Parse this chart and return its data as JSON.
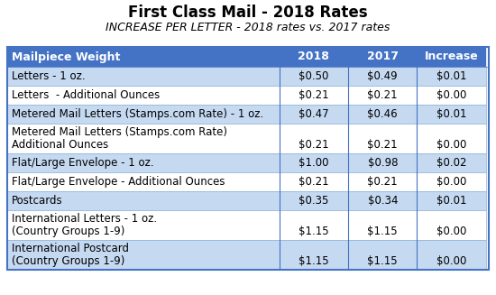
{
  "title": "First Class Mail - 2018 Rates",
  "subtitle": "INCREASE PER LETTER - 2018 rates vs. 2017 rates",
  "headers": [
    "Mailpiece Weight",
    "2018",
    "2017",
    "Increase"
  ],
  "rows": [
    {
      "label": "Letters - 1 oz.",
      "label2": null,
      "rate2018": "$0.50",
      "rate2017": "$0.49",
      "increase": "$0.01",
      "multiline": false,
      "shade": "light"
    },
    {
      "label": "Letters  - Additional Ounces",
      "label2": null,
      "rate2018": "$0.21",
      "rate2017": "$0.21",
      "increase": "$0.00",
      "multiline": false,
      "shade": "white"
    },
    {
      "label": "Metered Mail Letters (Stamps.com Rate) - 1 oz.",
      "label2": null,
      "rate2018": "$0.47",
      "rate2017": "$0.46",
      "increase": "$0.01",
      "multiline": false,
      "shade": "light"
    },
    {
      "label": "Metered Mail Letters (Stamps.com Rate)",
      "label2": "Additional Ounces",
      "rate2018": "$0.21",
      "rate2017": "$0.21",
      "increase": "$0.00",
      "multiline": true,
      "shade": "white"
    },
    {
      "label": "Flat/Large Envelope - 1 oz.",
      "label2": null,
      "rate2018": "$1.00",
      "rate2017": "$0.98",
      "increase": "$0.02",
      "multiline": false,
      "shade": "light"
    },
    {
      "label": "Flat/Large Envelope - Additional Ounces",
      "label2": null,
      "rate2018": "$0.21",
      "rate2017": "$0.21",
      "increase": "$0.00",
      "multiline": false,
      "shade": "white"
    },
    {
      "label": "Postcards",
      "label2": null,
      "rate2018": "$0.35",
      "rate2017": "$0.34",
      "increase": "$0.01",
      "multiline": false,
      "shade": "light"
    },
    {
      "label": "International Letters - 1 oz.",
      "label2": "(Country Groups 1-9)",
      "rate2018": "$1.15",
      "rate2017": "$1.15",
      "increase": "$0.00",
      "multiline": true,
      "shade": "white"
    },
    {
      "label": "International Postcard",
      "label2": "(Country Groups 1-9)",
      "rate2018": "$1.15",
      "rate2017": "$1.15",
      "increase": "$0.00",
      "multiline": true,
      "shade": "light"
    }
  ],
  "header_bg": "#4472C4",
  "header_fg": "#FFFFFF",
  "light_bg": "#C5D9F1",
  "white_bg": "#FFFFFF",
  "border_color": "#4472C4",
  "title_fontsize": 12,
  "subtitle_fontsize": 9,
  "cell_fontsize": 8.5,
  "header_fontsize": 9
}
